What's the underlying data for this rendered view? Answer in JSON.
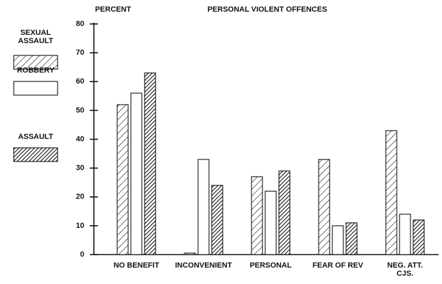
{
  "chart_data": {
    "type": "bar",
    "title": "PERSONAL VIOLENT OFFENCES",
    "y_label": "PERCENT",
    "categories": [
      "NO BENEFIT",
      "INCONVENIENT",
      "PERSONAL",
      "FEAR OF REV",
      "NEG. ATT. CJS."
    ],
    "series": [
      {
        "name": "SEXUAL ASSAULT",
        "color": "#111111",
        "hatch": "sparse",
        "values": [
          52,
          0.5,
          27,
          33,
          43
        ]
      },
      {
        "name": "ROBBERY",
        "color": "#111111",
        "hatch": "none",
        "values": [
          56,
          33,
          22,
          10,
          14
        ]
      },
      {
        "name": "ASSAULT",
        "color": "#111111",
        "hatch": "dense",
        "values": [
          63,
          24,
          29,
          11,
          12
        ]
      }
    ],
    "ylim": [
      0,
      80
    ],
    "yticks": [
      0,
      10,
      20,
      30,
      40,
      50,
      60,
      70,
      80
    ],
    "grid": false,
    "legend": "left"
  }
}
